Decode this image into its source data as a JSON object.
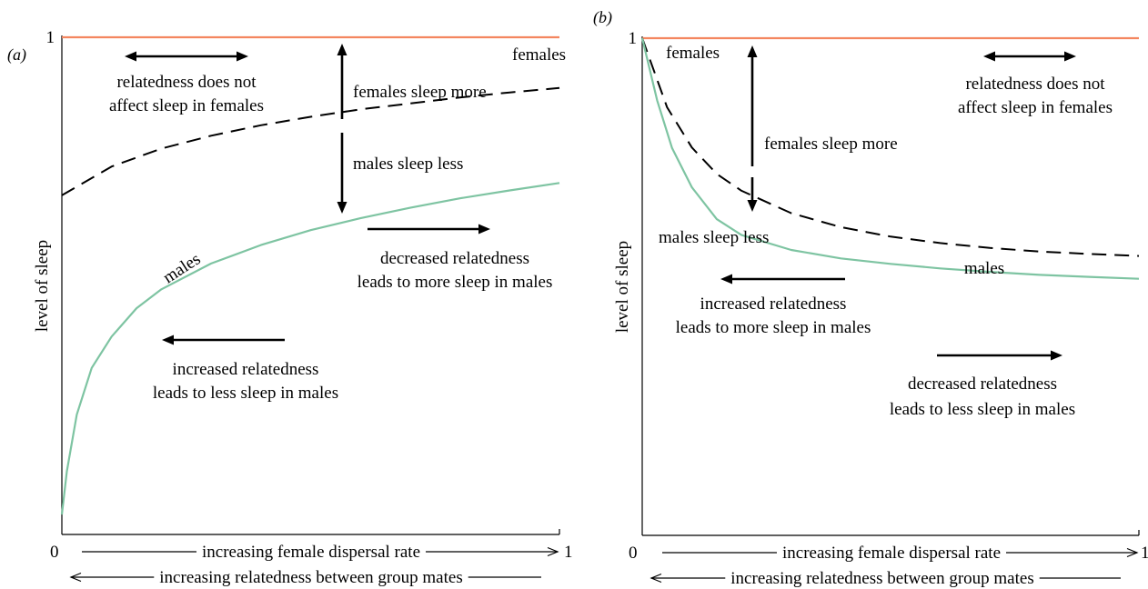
{
  "chart_data": [
    {
      "type": "line",
      "panel_label": "(a)",
      "ylabel": "level of sleep",
      "xlabel": "increasing female dispersal rate",
      "xlabel2": "increasing relatedness between group mates",
      "x_tick_labels": [
        "0",
        "1"
      ],
      "y_tick_labels": [
        "1"
      ],
      "xlim": [
        0,
        1
      ],
      "ylim": [
        0,
        1
      ],
      "series": [
        {
          "name": "females",
          "color": "#f4865f",
          "dash": false,
          "x": [
            0,
            0.25,
            0.5,
            0.75,
            1
          ],
          "y": [
            1,
            1,
            1,
            1,
            1
          ]
        },
        {
          "name": "",
          "color": "#000000",
          "dash": true,
          "x": [
            0,
            0.1,
            0.2,
            0.3,
            0.4,
            0.5,
            0.6,
            0.7,
            0.8,
            0.9,
            1
          ],
          "y": [
            0.682,
            0.74,
            0.776,
            0.802,
            0.823,
            0.84,
            0.855,
            0.867,
            0.879,
            0.889,
            0.898
          ]
        },
        {
          "name": "males",
          "color": "#7ec4a2",
          "dash": false,
          "x": [
            0,
            0.01,
            0.03,
            0.06,
            0.1,
            0.15,
            0.2,
            0.3,
            0.4,
            0.5,
            0.6,
            0.7,
            0.8,
            0.9,
            1
          ],
          "y": [
            0.04,
            0.127,
            0.241,
            0.335,
            0.398,
            0.455,
            0.493,
            0.545,
            0.582,
            0.612,
            0.636,
            0.657,
            0.676,
            0.692,
            0.707
          ]
        }
      ],
      "annotations": [
        {
          "key": "females",
          "text": "females"
        },
        {
          "key": "females_more",
          "text": "females sleep more"
        },
        {
          "key": "males_less",
          "text": "males sleep less"
        },
        {
          "key": "rel1",
          "text": "relatedness does not"
        },
        {
          "key": "rel2",
          "text": "affect sleep in females"
        },
        {
          "key": "males",
          "text": "males"
        },
        {
          "key": "dec1",
          "text": "decreased relatedness"
        },
        {
          "key": "dec2",
          "text": "leads to more sleep in males"
        },
        {
          "key": "inc1",
          "text": "increased relatedness"
        },
        {
          "key": "inc2",
          "text": "leads to less sleep in males"
        }
      ]
    },
    {
      "type": "line",
      "panel_label": "(b)",
      "ylabel": "level of sleep",
      "xlabel": "increasing female dispersal rate",
      "xlabel2": "increasing relatedness between group mates",
      "x_tick_labels": [
        "0",
        "1"
      ],
      "y_tick_labels": [
        "1"
      ],
      "xlim": [
        0,
        1
      ],
      "ylim": [
        0,
        1
      ],
      "series": [
        {
          "name": "females",
          "color": "#f4865f",
          "dash": false,
          "x": [
            0,
            0.25,
            0.5,
            0.75,
            1
          ],
          "y": [
            1,
            1,
            1,
            1,
            1
          ]
        },
        {
          "name": "",
          "color": "#000000",
          "dash": true,
          "x": [
            0,
            0.05,
            0.1,
            0.15,
            0.2,
            0.3,
            0.4,
            0.5,
            0.6,
            0.7,
            0.8,
            0.9,
            1
          ],
          "y": [
            1,
            0.861,
            0.78,
            0.727,
            0.693,
            0.648,
            0.62,
            0.601,
            0.588,
            0.578,
            0.571,
            0.566,
            0.562
          ]
        },
        {
          "name": "males",
          "color": "#7ec4a2",
          "dash": false,
          "x": [
            0,
            0.03,
            0.06,
            0.1,
            0.15,
            0.2,
            0.3,
            0.4,
            0.5,
            0.6,
            0.7,
            0.8,
            0.9,
            1
          ],
          "y": [
            1,
            0.875,
            0.779,
            0.7,
            0.636,
            0.604,
            0.574,
            0.557,
            0.546,
            0.537,
            0.53,
            0.524,
            0.52,
            0.516
          ]
        }
      ],
      "annotations": [
        {
          "key": "females",
          "text": "females"
        },
        {
          "key": "females_more",
          "text": "females sleep more"
        },
        {
          "key": "males_less",
          "text": "males sleep less"
        },
        {
          "key": "rel1",
          "text": "relatedness does not"
        },
        {
          "key": "rel2",
          "text": "affect sleep in females"
        },
        {
          "key": "males",
          "text": "males"
        },
        {
          "key": "inc1",
          "text": "increased relatedness"
        },
        {
          "key": "inc2",
          "text": "leads to more sleep in males"
        },
        {
          "key": "dec1",
          "text": "decreased relatedness"
        },
        {
          "key": "dec2",
          "text": "leads to less sleep in males"
        }
      ]
    }
  ]
}
